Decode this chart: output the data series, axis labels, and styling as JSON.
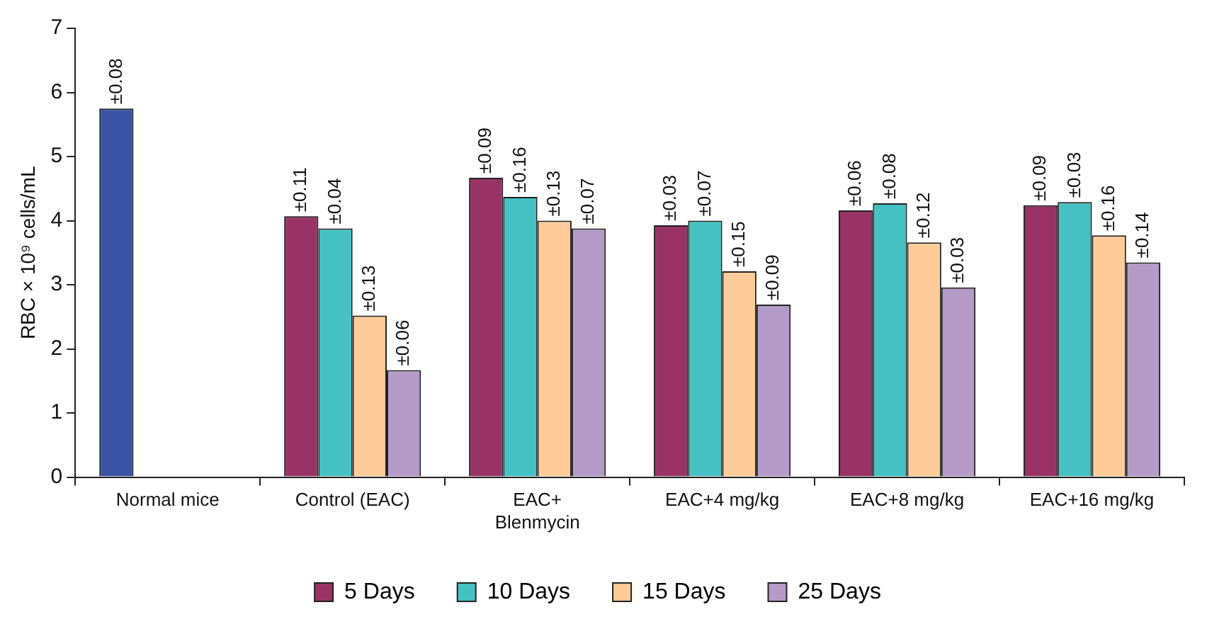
{
  "chart_data": {
    "type": "bar",
    "ylabel": "RBC × 10⁹ cells/mL",
    "categories": [
      "Normal mice",
      "Control (EAC)",
      "EAC+\nBlenmycin",
      "EAC+4 mg/kg",
      "EAC+8 mg/kg",
      "EAC+16 mg/kg"
    ],
    "ylim": [
      0,
      7
    ],
    "yticks": [
      0,
      1,
      2,
      3,
      4,
      5,
      6,
      7
    ],
    "grid": false,
    "legend": "bottom",
    "series": [
      {
        "name": "5 Days",
        "color": "#993366",
        "colors": [
          "#3a53a4",
          "#993366",
          "#993366",
          "#993366",
          "#993366",
          "#993366"
        ],
        "values": [
          5.75,
          4.07,
          4.67,
          3.93,
          4.16,
          4.24
        ]
      },
      {
        "name": "10 Days",
        "color": "#45c1c3",
        "values": [
          null,
          3.88,
          4.37,
          4.0,
          4.27,
          4.29
        ]
      },
      {
        "name": "15 Days",
        "color": "#ffcc99",
        "values": [
          null,
          2.52,
          4.0,
          3.21,
          3.66,
          3.77
        ]
      },
      {
        "name": "25 Days",
        "color": "#b49bc8",
        "values": [
          null,
          1.67,
          3.88,
          2.69,
          2.96,
          3.35
        ]
      }
    ],
    "annotations": [
      "±0.08",
      "±0.11",
      "±0.04",
      "±0.13",
      "±0.06",
      "±0.09",
      "±0.16",
      "±0.13",
      "±0.07",
      "±0.03",
      "±0.07",
      "±0.15",
      "±0.09",
      "±0.06",
      "±0.08",
      "±0.12",
      "±0.03",
      "±0.09",
      "±0.03",
      "±0.16",
      "±0.14"
    ]
  }
}
